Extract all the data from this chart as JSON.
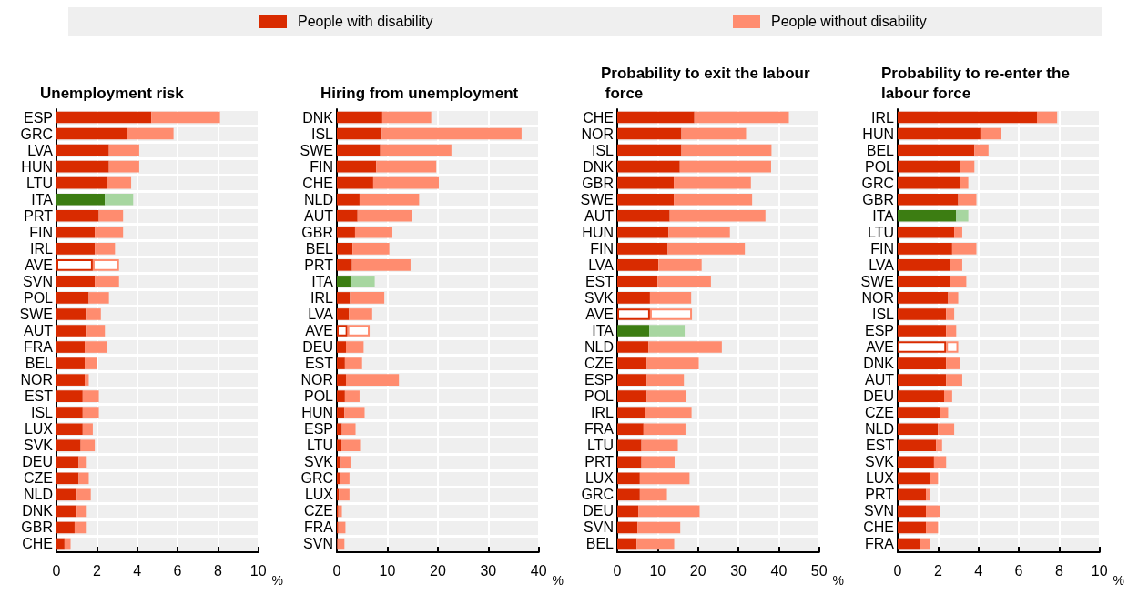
{
  "chart_data": [
    {
      "type": "bar",
      "title": "Unemployment risk",
      "xlabel": "%",
      "orientation": "horizontal",
      "stacked": true,
      "grid": true,
      "legend": "top",
      "xlim": [
        0,
        10
      ],
      "xticks": [
        0,
        2,
        4,
        6,
        8,
        10
      ],
      "categories": [
        "ESP",
        "GRC",
        "LVA",
        "HUN",
        "LTU",
        "ITA",
        "PRT",
        "FIN",
        "IRL",
        "AVE",
        "SVN",
        "POL",
        "SWE",
        "AUT",
        "FRA",
        "BEL",
        "NOR",
        "EST",
        "ISL",
        "LUX",
        "SVK",
        "DEU",
        "CZE",
        "NLD",
        "DNK",
        "GBR",
        "CHE"
      ],
      "series": [
        {
          "name": "People with disability",
          "color": "#d92b00",
          "colors": [
            "#d92b00",
            "#d92b00",
            "#d92b00",
            "#d92b00",
            "#d92b00",
            "#3c7d12",
            "#d92b00",
            "#d92b00",
            "#d92b00",
            "#ffffff",
            "#d92b00",
            "#d92b00",
            "#d92b00",
            "#d92b00",
            "#d92b00",
            "#d92b00",
            "#d92b00",
            "#d92b00",
            "#d92b00",
            "#d92b00",
            "#d92b00",
            "#d92b00",
            "#d92b00",
            "#d92b00",
            "#d92b00",
            "#d92b00",
            "#d92b00"
          ],
          "values": [
            4.7,
            3.5,
            2.6,
            2.6,
            2.5,
            2.4,
            2.1,
            1.9,
            1.9,
            1.8,
            1.9,
            1.6,
            1.5,
            1.5,
            1.4,
            1.4,
            1.4,
            1.3,
            1.3,
            1.3,
            1.2,
            1.1,
            1.1,
            1.0,
            1.0,
            0.9,
            0.4
          ]
        },
        {
          "name": "People without disability",
          "color": "#ff8c6f",
          "colors": [
            "#ff8c6f",
            "#ff8c6f",
            "#ff8c6f",
            "#ff8c6f",
            "#ff8c6f",
            "#a7d6a0",
            "#ff8c6f",
            "#ff8c6f",
            "#ff8c6f",
            "#ffffff",
            "#ff8c6f",
            "#ff8c6f",
            "#ff8c6f",
            "#ff8c6f",
            "#ff8c6f",
            "#ff8c6f",
            "#ff8c6f",
            "#ff8c6f",
            "#ff8c6f",
            "#ff8c6f",
            "#ff8c6f",
            "#ff8c6f",
            "#ff8c6f",
            "#ff8c6f",
            "#ff8c6f",
            "#ff8c6f",
            "#ff8c6f"
          ],
          "values": [
            3.4,
            2.3,
            1.5,
            1.5,
            1.2,
            1.4,
            1.2,
            1.4,
            1.0,
            1.3,
            1.2,
            1.0,
            0.7,
            0.9,
            1.1,
            0.6,
            0.2,
            0.8,
            0.8,
            0.5,
            0.7,
            0.4,
            0.5,
            0.7,
            0.5,
            0.6,
            0.3
          ]
        }
      ]
    },
    {
      "type": "bar",
      "title": "Hiring from unemployment",
      "xlabel": "%",
      "orientation": "horizontal",
      "stacked": true,
      "grid": true,
      "xlim": [
        0,
        40
      ],
      "xticks": [
        0,
        10,
        20,
        30,
        40
      ],
      "categories": [
        "DNK",
        "ISL",
        "SWE",
        "FIN",
        "CHE",
        "NLD",
        "AUT",
        "GBR",
        "BEL",
        "PRT",
        "ITA",
        "IRL",
        "LVA",
        "AVE",
        "DEU",
        "EST",
        "NOR",
        "POL",
        "HUN",
        "ESP",
        "LTU",
        "SVK",
        "GRC",
        "LUX",
        "CZE",
        "FRA",
        "SVN"
      ],
      "series": [
        {
          "color": "#d92b00",
          "colors": [
            "#d92b00",
            "#d92b00",
            "#d92b00",
            "#d92b00",
            "#d92b00",
            "#d92b00",
            "#d92b00",
            "#d92b00",
            "#d92b00",
            "#d92b00",
            "#3c7d12",
            "#d92b00",
            "#d92b00",
            "#ffffff",
            "#d92b00",
            "#d92b00",
            "#d92b00",
            "#d92b00",
            "#d92b00",
            "#d92b00",
            "#d92b00",
            "#d92b00",
            "#d92b00",
            "#d92b00",
            "#d92b00",
            "#d92b00",
            "#d92b00"
          ],
          "values": [
            9.0,
            8.9,
            8.6,
            7.8,
            7.2,
            4.5,
            4.1,
            3.6,
            3.1,
            3.0,
            2.7,
            2.6,
            2.4,
            2.1,
            1.8,
            1.6,
            1.8,
            1.6,
            1.5,
            1.0,
            0.9,
            0.8,
            0.6,
            0.4,
            0.3,
            0.3,
            0.1
          ]
        },
        {
          "color": "#ff8c6f",
          "colors": [
            "#ff8c6f",
            "#ff8c6f",
            "#ff8c6f",
            "#ff8c6f",
            "#ff8c6f",
            "#ff8c6f",
            "#ff8c6f",
            "#ff8c6f",
            "#ff8c6f",
            "#ff8c6f",
            "#a7d6a0",
            "#ff8c6f",
            "#ff8c6f",
            "#ffffff",
            "#ff8c6f",
            "#ff8c6f",
            "#ff8c6f",
            "#ff8c6f",
            "#ff8c6f",
            "#ff8c6f",
            "#ff8c6f",
            "#ff8c6f",
            "#ff8c6f",
            "#ff8c6f",
            "#ff8c6f",
            "#ff8c6f",
            "#ff8c6f"
          ],
          "values": [
            9.7,
            27.7,
            14.1,
            11.9,
            13.0,
            11.8,
            10.7,
            7.4,
            7.3,
            11.6,
            4.8,
            6.8,
            4.6,
            4.4,
            3.5,
            3.4,
            10.5,
            2.9,
            4.0,
            2.7,
            3.7,
            1.9,
            1.9,
            2.1,
            0.7,
            1.4,
            1.4
          ]
        }
      ]
    },
    {
      "type": "bar",
      "title": "Probability to exit the labour force",
      "xlabel": "%",
      "orientation": "horizontal",
      "stacked": true,
      "grid": true,
      "xlim": [
        0,
        50
      ],
      "xticks": [
        0,
        10,
        20,
        30,
        40,
        50
      ],
      "categories": [
        "CHE",
        "NOR",
        "ISL",
        "DNK",
        "GBR",
        "SWE",
        "AUT",
        "HUN",
        "FIN",
        "LVA",
        "EST",
        "SVK",
        "AVE",
        "ITA",
        "NLD",
        "CZE",
        "ESP",
        "POL",
        "IRL",
        "FRA",
        "LTU",
        "PRT",
        "LUX",
        "GRC",
        "DEU",
        "SVN",
        "BEL"
      ],
      "series": [
        {
          "color": "#d92b00",
          "colors": [
            "#d92b00",
            "#d92b00",
            "#d92b00",
            "#d92b00",
            "#d92b00",
            "#d92b00",
            "#d92b00",
            "#d92b00",
            "#d92b00",
            "#d92b00",
            "#d92b00",
            "#d92b00",
            "#ffffff",
            "#3c7d12",
            "#d92b00",
            "#d92b00",
            "#d92b00",
            "#d92b00",
            "#d92b00",
            "#d92b00",
            "#d92b00",
            "#d92b00",
            "#d92b00",
            "#d92b00",
            "#d92b00",
            "#d92b00",
            "#d92b00"
          ],
          "values": [
            19.1,
            15.9,
            15.9,
            15.5,
            14.0,
            14.0,
            13.0,
            12.7,
            12.5,
            10.2,
            10.0,
            8.1,
            8.1,
            7.9,
            7.7,
            7.3,
            7.3,
            7.3,
            6.9,
            6.5,
            6.0,
            6.0,
            5.6,
            5.6,
            5.2,
            5.0,
            4.8
          ]
        },
        {
          "color": "#ff8c6f",
          "colors": [
            "#ff8c6f",
            "#ff8c6f",
            "#ff8c6f",
            "#ff8c6f",
            "#ff8c6f",
            "#ff8c6f",
            "#ff8c6f",
            "#ff8c6f",
            "#ff8c6f",
            "#ff8c6f",
            "#ff8c6f",
            "#ff8c6f",
            "#ffffff",
            "#a7d6a0",
            "#ff8c6f",
            "#ff8c6f",
            "#ff8c6f",
            "#ff8c6f",
            "#ff8c6f",
            "#ff8c6f",
            "#ff8c6f",
            "#ff8c6f",
            "#ff8c6f",
            "#ff8c6f",
            "#ff8c6f",
            "#ff8c6f",
            "#ff8c6f"
          ],
          "values": [
            23.4,
            16.0,
            22.3,
            22.6,
            19.1,
            19.4,
            23.7,
            15.2,
            19.1,
            10.7,
            13.2,
            10.2,
            10.4,
            8.8,
            18.2,
            12.9,
            9.2,
            9.7,
            11.5,
            10.4,
            9.0,
            8.2,
            12.3,
            6.7,
            15.2,
            10.6,
            9.3
          ]
        }
      ]
    },
    {
      "type": "bar",
      "title": "Probability to re-enter the labour force",
      "xlabel": "%",
      "orientation": "horizontal",
      "stacked": true,
      "grid": true,
      "xlim": [
        0,
        10
      ],
      "xticks": [
        0,
        2,
        4,
        6,
        8,
        10
      ],
      "categories": [
        "IRL",
        "HUN",
        "BEL",
        "POL",
        "GRC",
        "GBR",
        "ITA",
        "LTU",
        "FIN",
        "LVA",
        "SWE",
        "NOR",
        "ISL",
        "ESP",
        "AVE",
        "DNK",
        "AUT",
        "DEU",
        "CZE",
        "NLD",
        "EST",
        "SVK",
        "LUX",
        "PRT",
        "SVN",
        "CHE",
        "FRA"
      ],
      "series": [
        {
          "color": "#d92b00",
          "colors": [
            "#d92b00",
            "#d92b00",
            "#d92b00",
            "#d92b00",
            "#d92b00",
            "#d92b00",
            "#3c7d12",
            "#d92b00",
            "#d92b00",
            "#d92b00",
            "#d92b00",
            "#d92b00",
            "#d92b00",
            "#d92b00",
            "#ffffff",
            "#d92b00",
            "#d92b00",
            "#d92b00",
            "#d92b00",
            "#d92b00",
            "#d92b00",
            "#d92b00",
            "#d92b00",
            "#d92b00",
            "#d92b00",
            "#d92b00",
            "#d92b00"
          ],
          "values": [
            6.9,
            4.1,
            3.8,
            3.1,
            3.1,
            3.0,
            2.9,
            2.8,
            2.7,
            2.6,
            2.6,
            2.5,
            2.4,
            2.4,
            2.4,
            2.4,
            2.4,
            2.3,
            2.1,
            2.0,
            1.9,
            1.8,
            1.6,
            1.4,
            1.4,
            1.4,
            1.1
          ]
        },
        {
          "color": "#ff8c6f",
          "colors": [
            "#ff8c6f",
            "#ff8c6f",
            "#ff8c6f",
            "#ff8c6f",
            "#ff8c6f",
            "#ff8c6f",
            "#a7d6a0",
            "#ff8c6f",
            "#ff8c6f",
            "#ff8c6f",
            "#ff8c6f",
            "#ff8c6f",
            "#ff8c6f",
            "#ff8c6f",
            "#ffffff",
            "#ff8c6f",
            "#ff8c6f",
            "#ff8c6f",
            "#ff8c6f",
            "#ff8c6f",
            "#ff8c6f",
            "#ff8c6f",
            "#ff8c6f",
            "#ff8c6f",
            "#ff8c6f",
            "#ff8c6f",
            "#ff8c6f"
          ],
          "values": [
            1.0,
            1.0,
            0.7,
            0.7,
            0.4,
            0.9,
            0.6,
            0.4,
            1.2,
            0.6,
            0.8,
            0.5,
            0.4,
            0.5,
            0.6,
            0.7,
            0.8,
            0.4,
            0.4,
            0.8,
            0.3,
            0.6,
            0.4,
            0.2,
            0.7,
            0.6,
            0.5
          ]
        }
      ]
    }
  ]
}
